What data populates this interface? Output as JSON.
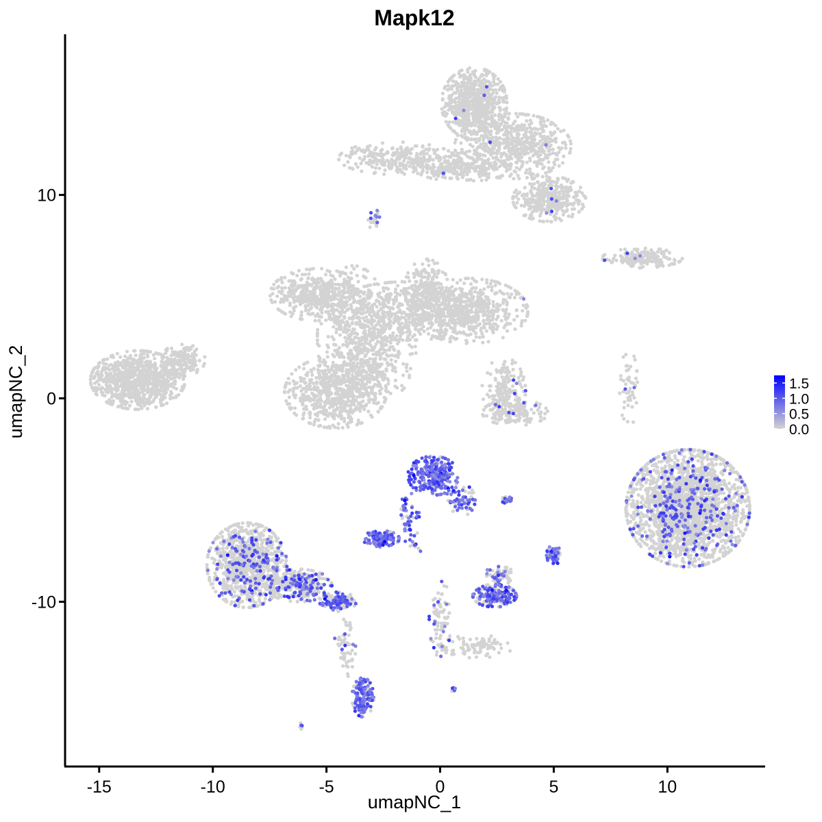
{
  "chart_data": {
    "type": "scatter",
    "title": "Mapk12",
    "xlabel": "umapNC_1",
    "ylabel": "umapNC_2",
    "xlim": [
      -16.5,
      14.3
    ],
    "ylim": [
      -18.1,
      17.9
    ],
    "x_ticks": [
      -15,
      -10,
      -5,
      0,
      5,
      10
    ],
    "x_tick_labels": [
      "-15",
      "-10",
      "-5",
      "0",
      "5",
      "10"
    ],
    "y_ticks": [
      -10,
      0,
      10
    ],
    "y_tick_labels": [
      "-10",
      "0",
      "10"
    ],
    "grid": false,
    "legend_position": "right",
    "color_scale": {
      "low_color": "#d3d3d3",
      "high_color": "#0000ff",
      "range": [
        0,
        1.75
      ],
      "breaks": [
        0.0,
        0.5,
        1.0,
        1.5
      ],
      "break_labels": [
        "0.0",
        "0.5",
        "1.0",
        "1.5"
      ]
    },
    "clusters": [
      {
        "name": "c01",
        "cx": -13.3,
        "cy": 0.9,
        "sx": 1.3,
        "sy": 0.9,
        "n": 900,
        "expr_frac": 0.0
      },
      {
        "name": "c02",
        "cx": -11.3,
        "cy": 1.9,
        "sx": 0.6,
        "sy": 0.5,
        "n": 160,
        "expr_frac": 0.0
      },
      {
        "name": "c03",
        "cx": -5.4,
        "cy": 5.1,
        "sx": 1.3,
        "sy": 0.8,
        "n": 420,
        "expr_frac": 0.0
      },
      {
        "name": "c04",
        "cx": -3.8,
        "cy": 3.0,
        "sx": 1.0,
        "sy": 2.2,
        "n": 380,
        "expr_frac": 0.0
      },
      {
        "name": "c05",
        "cx": -4.6,
        "cy": 0.3,
        "sx": 1.4,
        "sy": 1.1,
        "n": 650,
        "expr_frac": 0.0
      },
      {
        "name": "c06",
        "cx": -1.4,
        "cy": 4.3,
        "sx": 2.2,
        "sy": 0.9,
        "n": 600,
        "expr_frac": 0.0
      },
      {
        "name": "c07",
        "cx": 1.3,
        "cy": 4.3,
        "sx": 1.6,
        "sy": 1.0,
        "n": 520,
        "expr_frac": 0.003
      },
      {
        "name": "c08",
        "cx": -0.6,
        "cy": 5.4,
        "sx": 0.6,
        "sy": 0.9,
        "n": 180,
        "expr_frac": 0.0
      },
      {
        "name": "c09",
        "cx": -2.5,
        "cy": 2.1,
        "sx": 0.9,
        "sy": 1.3,
        "n": 220,
        "expr_frac": 0.0
      },
      {
        "name": "c10",
        "cx": 1.5,
        "cy": 14.5,
        "sx": 0.9,
        "sy": 1.1,
        "n": 700,
        "expr_frac": 0.005
      },
      {
        "name": "c11",
        "cx": 3.2,
        "cy": 12.4,
        "sx": 1.6,
        "sy": 1.0,
        "n": 600,
        "expr_frac": 0.006
      },
      {
        "name": "c12",
        "cx": -1.9,
        "cy": 11.8,
        "sx": 1.6,
        "sy": 0.5,
        "n": 300,
        "expr_frac": 0.0
      },
      {
        "name": "c13",
        "cx": 1.0,
        "cy": 11.3,
        "sx": 1.3,
        "sy": 0.4,
        "n": 200,
        "expr_frac": 0.004
      },
      {
        "name": "c14",
        "cx": 4.8,
        "cy": 9.8,
        "sx": 1.0,
        "sy": 0.7,
        "n": 380,
        "expr_frac": 0.01
      },
      {
        "name": "c15",
        "cx": -2.9,
        "cy": 8.8,
        "sx": 0.2,
        "sy": 0.3,
        "n": 25,
        "expr_frac": 0.3
      },
      {
        "name": "c16",
        "cx": 8.9,
        "cy": 6.9,
        "sx": 1.1,
        "sy": 0.3,
        "n": 170,
        "expr_frac": 0.02
      },
      {
        "name": "c17",
        "cx": 2.8,
        "cy": 0.4,
        "sx": 0.6,
        "sy": 1.0,
        "n": 170,
        "expr_frac": 0.02
      },
      {
        "name": "c18",
        "cx": 3.3,
        "cy": -0.7,
        "sx": 0.9,
        "sy": 0.4,
        "n": 150,
        "expr_frac": 0.01
      },
      {
        "name": "c19",
        "cx": 8.3,
        "cy": 0.5,
        "sx": 0.25,
        "sy": 1.2,
        "n": 50,
        "expr_frac": 0.02
      },
      {
        "name": "c20",
        "cx": 10.9,
        "cy": -5.4,
        "sx": 1.7,
        "sy": 1.8,
        "n": 2300,
        "expr_frac": 0.1
      },
      {
        "name": "c21",
        "cx": -0.3,
        "cy": -3.8,
        "sx": 0.7,
        "sy": 0.6,
        "n": 260,
        "expr_frac": 0.85
      },
      {
        "name": "c22",
        "cx": 0.9,
        "cy": -5.0,
        "sx": 0.4,
        "sy": 0.5,
        "n": 60,
        "expr_frac": 0.6
      },
      {
        "name": "c23",
        "cx": -1.4,
        "cy": -5.9,
        "sx": 0.3,
        "sy": 0.8,
        "n": 50,
        "expr_frac": 0.7
      },
      {
        "name": "c24",
        "cx": -2.6,
        "cy": -6.9,
        "sx": 0.5,
        "sy": 0.25,
        "n": 120,
        "expr_frac": 0.8
      },
      {
        "name": "c25",
        "cx": -8.5,
        "cy": -8.2,
        "sx": 1.1,
        "sy": 1.3,
        "n": 1000,
        "expr_frac": 0.12
      },
      {
        "name": "c26",
        "cx": -6.2,
        "cy": -9.2,
        "sx": 0.9,
        "sy": 0.5,
        "n": 320,
        "expr_frac": 0.25
      },
      {
        "name": "c27",
        "cx": -4.5,
        "cy": -10.0,
        "sx": 0.5,
        "sy": 0.3,
        "n": 120,
        "expr_frac": 0.5
      },
      {
        "name": "c28",
        "cx": -4.2,
        "cy": -12.3,
        "sx": 0.3,
        "sy": 0.9,
        "n": 60,
        "expr_frac": 0.05
      },
      {
        "name": "c29",
        "cx": -3.4,
        "cy": -14.7,
        "sx": 0.3,
        "sy": 0.6,
        "n": 140,
        "expr_frac": 0.75
      },
      {
        "name": "c30",
        "cx": 2.4,
        "cy": -9.7,
        "sx": 0.6,
        "sy": 0.35,
        "n": 220,
        "expr_frac": 0.55
      },
      {
        "name": "c31",
        "cx": 2.6,
        "cy": -8.7,
        "sx": 0.4,
        "sy": 0.3,
        "n": 60,
        "expr_frac": 0.3
      },
      {
        "name": "c32",
        "cx": 5.0,
        "cy": -7.7,
        "sx": 0.2,
        "sy": 0.3,
        "n": 50,
        "expr_frac": 0.7
      },
      {
        "name": "c33",
        "cx": 2.9,
        "cy": -5.0,
        "sx": 0.2,
        "sy": 0.1,
        "n": 20,
        "expr_frac": 0.6
      },
      {
        "name": "c34",
        "cx": -1.0,
        "cy": -7.3,
        "sx": 0.2,
        "sy": 0.15,
        "n": 10,
        "expr_frac": 0.4
      },
      {
        "name": "c35",
        "cx": 0.0,
        "cy": -10.8,
        "sx": 0.3,
        "sy": 1.2,
        "n": 70,
        "expr_frac": 0.2
      },
      {
        "name": "c36",
        "cx": 1.6,
        "cy": -12.2,
        "sx": 1.0,
        "sy": 0.35,
        "n": 90,
        "expr_frac": 0.0
      },
      {
        "name": "c37",
        "cx": 0.6,
        "cy": -14.3,
        "sx": 0.1,
        "sy": 0.1,
        "n": 8,
        "expr_frac": 0.6
      },
      {
        "name": "c38",
        "cx": -6.1,
        "cy": -16.1,
        "sx": 0.1,
        "sy": 0.1,
        "n": 6,
        "expr_frac": 0.5
      }
    ]
  }
}
